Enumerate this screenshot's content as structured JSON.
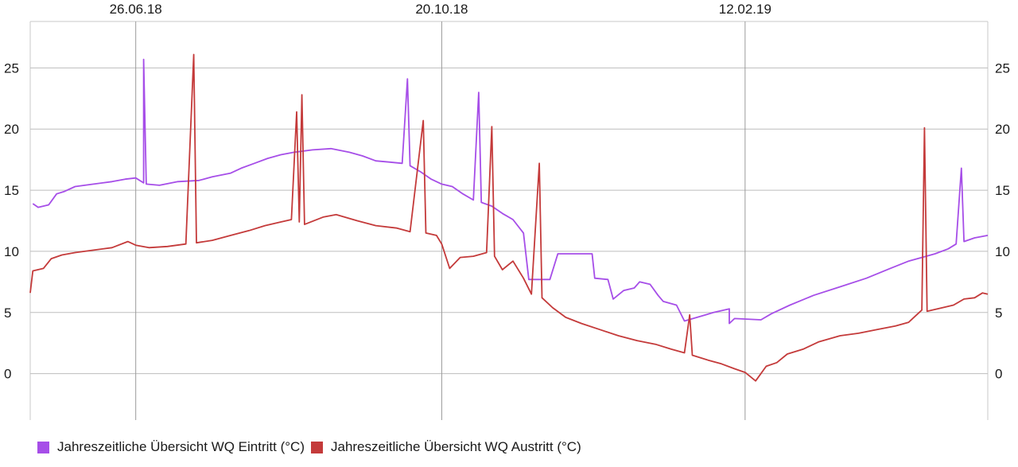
{
  "chart_data": {
    "type": "line",
    "title": "",
    "xlabel": "",
    "ylabel": "",
    "x_start": "2018-05-17",
    "x_end": "2019-05-15",
    "ylim": [
      -3.8,
      28.8
    ],
    "y_ticks": [
      0,
      5,
      10,
      15,
      20,
      25
    ],
    "y_tick_labels": [
      "0",
      "5",
      "10",
      "15",
      "20",
      "25"
    ],
    "x_ticks": [
      {
        "date": "2018-06-26",
        "label": "26.06.18"
      },
      {
        "date": "2018-10-20",
        "label": "20.10.18"
      },
      {
        "date": "2019-02-12",
        "label": "12.02.19"
      }
    ],
    "grid": true,
    "legend_position": "bottom-left",
    "series": [
      {
        "name": "Jahreszeitliche Übersicht WQ Eintritt (°C)",
        "color": "#a64ee8",
        "points": [
          [
            "2018-05-18",
            13.9
          ],
          [
            "2018-05-20",
            13.6
          ],
          [
            "2018-05-24",
            13.8
          ],
          [
            "2018-05-27",
            14.7
          ],
          [
            "2018-05-30",
            14.9
          ],
          [
            "2018-06-03",
            15.3
          ],
          [
            "2018-06-10",
            15.5
          ],
          [
            "2018-06-17",
            15.7
          ],
          [
            "2018-06-22",
            15.9
          ],
          [
            "2018-06-26",
            16.0
          ],
          [
            "2018-06-29",
            15.6
          ],
          [
            "2018-06-29",
            25.7
          ],
          [
            "2018-06-30",
            15.5
          ],
          [
            "2018-07-05",
            15.4
          ],
          [
            "2018-07-12",
            15.7
          ],
          [
            "2018-07-20",
            15.8
          ],
          [
            "2018-07-25",
            16.1
          ],
          [
            "2018-08-01",
            16.4
          ],
          [
            "2018-08-05",
            16.8
          ],
          [
            "2018-08-10",
            17.2
          ],
          [
            "2018-08-15",
            17.6
          ],
          [
            "2018-08-20",
            17.9
          ],
          [
            "2018-08-25",
            18.1
          ],
          [
            "2018-09-01",
            18.3
          ],
          [
            "2018-09-08",
            18.4
          ],
          [
            "2018-09-15",
            18.1
          ],
          [
            "2018-09-20",
            17.8
          ],
          [
            "2018-09-25",
            17.4
          ],
          [
            "2018-09-30",
            17.3
          ],
          [
            "2018-10-05",
            17.2
          ],
          [
            "2018-10-07",
            24.1
          ],
          [
            "2018-10-08",
            17.0
          ],
          [
            "2018-10-12",
            16.5
          ],
          [
            "2018-10-16",
            15.9
          ],
          [
            "2018-10-20",
            15.5
          ],
          [
            "2018-10-24",
            15.3
          ],
          [
            "2018-10-28",
            14.7
          ],
          [
            "2018-11-01",
            14.2
          ],
          [
            "2018-11-03",
            23.0
          ],
          [
            "2018-11-04",
            14.0
          ],
          [
            "2018-11-08",
            13.7
          ],
          [
            "2018-11-12",
            13.1
          ],
          [
            "2018-11-16",
            12.6
          ],
          [
            "2018-11-20",
            11.5
          ],
          [
            "2018-11-22",
            7.7
          ],
          [
            "2018-11-30",
            7.7
          ],
          [
            "2018-12-03",
            9.8
          ],
          [
            "2018-12-16",
            9.8
          ],
          [
            "2018-12-17",
            7.8
          ],
          [
            "2018-12-22",
            7.7
          ],
          [
            "2018-12-24",
            6.1
          ],
          [
            "2018-12-28",
            6.8
          ],
          [
            "2019-01-01",
            7.0
          ],
          [
            "2019-01-03",
            7.5
          ],
          [
            "2019-01-07",
            7.3
          ],
          [
            "2019-01-10",
            6.4
          ],
          [
            "2019-01-12",
            5.9
          ],
          [
            "2019-01-17",
            5.6
          ],
          [
            "2019-01-20",
            4.3
          ],
          [
            "2019-01-31",
            5.0
          ],
          [
            "2019-02-06",
            5.3
          ],
          [
            "2019-02-06",
            4.1
          ],
          [
            "2019-02-08",
            4.5
          ],
          [
            "2019-02-18",
            4.4
          ],
          [
            "2019-02-22",
            4.9
          ],
          [
            "2019-03-01",
            5.6
          ],
          [
            "2019-03-10",
            6.4
          ],
          [
            "2019-03-20",
            7.1
          ],
          [
            "2019-03-30",
            7.8
          ],
          [
            "2019-04-08",
            8.6
          ],
          [
            "2019-04-15",
            9.2
          ],
          [
            "2019-04-20",
            9.5
          ],
          [
            "2019-04-25",
            9.8
          ],
          [
            "2019-04-30",
            10.2
          ],
          [
            "2019-05-03",
            10.6
          ],
          [
            "2019-05-05",
            16.8
          ],
          [
            "2019-05-06",
            10.8
          ],
          [
            "2019-05-10",
            11.1
          ],
          [
            "2019-05-15",
            11.3
          ]
        ]
      },
      {
        "name": "Jahreszeitliche Übersicht WQ Austritt (°C)",
        "color": "#c43a3a",
        "points": [
          [
            "2018-05-17",
            6.6
          ],
          [
            "2018-05-18",
            8.4
          ],
          [
            "2018-05-22",
            8.6
          ],
          [
            "2018-05-25",
            9.4
          ],
          [
            "2018-05-29",
            9.7
          ],
          [
            "2018-06-03",
            9.9
          ],
          [
            "2018-06-10",
            10.1
          ],
          [
            "2018-06-17",
            10.3
          ],
          [
            "2018-06-23",
            10.8
          ],
          [
            "2018-06-26",
            10.5
          ],
          [
            "2018-07-01",
            10.3
          ],
          [
            "2018-07-08",
            10.4
          ],
          [
            "2018-07-15",
            10.6
          ],
          [
            "2018-07-18",
            26.1
          ],
          [
            "2018-07-19",
            10.7
          ],
          [
            "2018-07-25",
            10.9
          ],
          [
            "2018-08-01",
            11.3
          ],
          [
            "2018-08-08",
            11.7
          ],
          [
            "2018-08-14",
            12.1
          ],
          [
            "2018-08-20",
            12.4
          ],
          [
            "2018-08-24",
            12.6
          ],
          [
            "2018-08-26",
            21.4
          ],
          [
            "2018-08-27",
            12.4
          ],
          [
            "2018-08-28",
            22.8
          ],
          [
            "2018-08-29",
            12.2
          ],
          [
            "2018-09-05",
            12.8
          ],
          [
            "2018-09-10",
            13.0
          ],
          [
            "2018-09-18",
            12.5
          ],
          [
            "2018-09-25",
            12.1
          ],
          [
            "2018-10-03",
            11.9
          ],
          [
            "2018-10-08",
            11.6
          ],
          [
            "2018-10-13",
            20.7
          ],
          [
            "2018-10-14",
            11.5
          ],
          [
            "2018-10-18",
            11.3
          ],
          [
            "2018-10-20",
            10.6
          ],
          [
            "2018-10-23",
            8.6
          ],
          [
            "2018-10-27",
            9.5
          ],
          [
            "2018-11-01",
            9.6
          ],
          [
            "2018-11-06",
            9.9
          ],
          [
            "2018-11-08",
            20.2
          ],
          [
            "2018-11-09",
            9.6
          ],
          [
            "2018-11-12",
            8.5
          ],
          [
            "2018-11-16",
            9.2
          ],
          [
            "2018-11-20",
            7.8
          ],
          [
            "2018-11-23",
            6.5
          ],
          [
            "2018-11-26",
            17.2
          ],
          [
            "2018-11-27",
            6.2
          ],
          [
            "2018-12-01",
            5.4
          ],
          [
            "2018-12-06",
            4.6
          ],
          [
            "2018-12-12",
            4.1
          ],
          [
            "2018-12-19",
            3.6
          ],
          [
            "2018-12-26",
            3.1
          ],
          [
            "2019-01-02",
            2.7
          ],
          [
            "2019-01-09",
            2.4
          ],
          [
            "2019-01-15",
            2.0
          ],
          [
            "2019-01-20",
            1.7
          ],
          [
            "2019-01-22",
            4.8
          ],
          [
            "2019-01-23",
            1.5
          ],
          [
            "2019-01-29",
            1.1
          ],
          [
            "2019-02-03",
            0.8
          ],
          [
            "2019-02-08",
            0.4
          ],
          [
            "2019-02-12",
            0.1
          ],
          [
            "2019-02-16",
            -0.6
          ],
          [
            "2019-02-20",
            0.6
          ],
          [
            "2019-02-24",
            0.9
          ],
          [
            "2019-02-28",
            1.6
          ],
          [
            "2019-03-06",
            2.0
          ],
          [
            "2019-03-12",
            2.6
          ],
          [
            "2019-03-20",
            3.1
          ],
          [
            "2019-03-27",
            3.3
          ],
          [
            "2019-04-03",
            3.6
          ],
          [
            "2019-04-10",
            3.9
          ],
          [
            "2019-04-15",
            4.2
          ],
          [
            "2019-04-20",
            5.2
          ],
          [
            "2019-04-21",
            20.1
          ],
          [
            "2019-04-22",
            5.1
          ],
          [
            "2019-04-28",
            5.4
          ],
          [
            "2019-05-02",
            5.6
          ],
          [
            "2019-05-06",
            6.1
          ],
          [
            "2019-05-10",
            6.2
          ],
          [
            "2019-05-13",
            6.6
          ],
          [
            "2019-05-15",
            6.5
          ]
        ]
      }
    ]
  }
}
